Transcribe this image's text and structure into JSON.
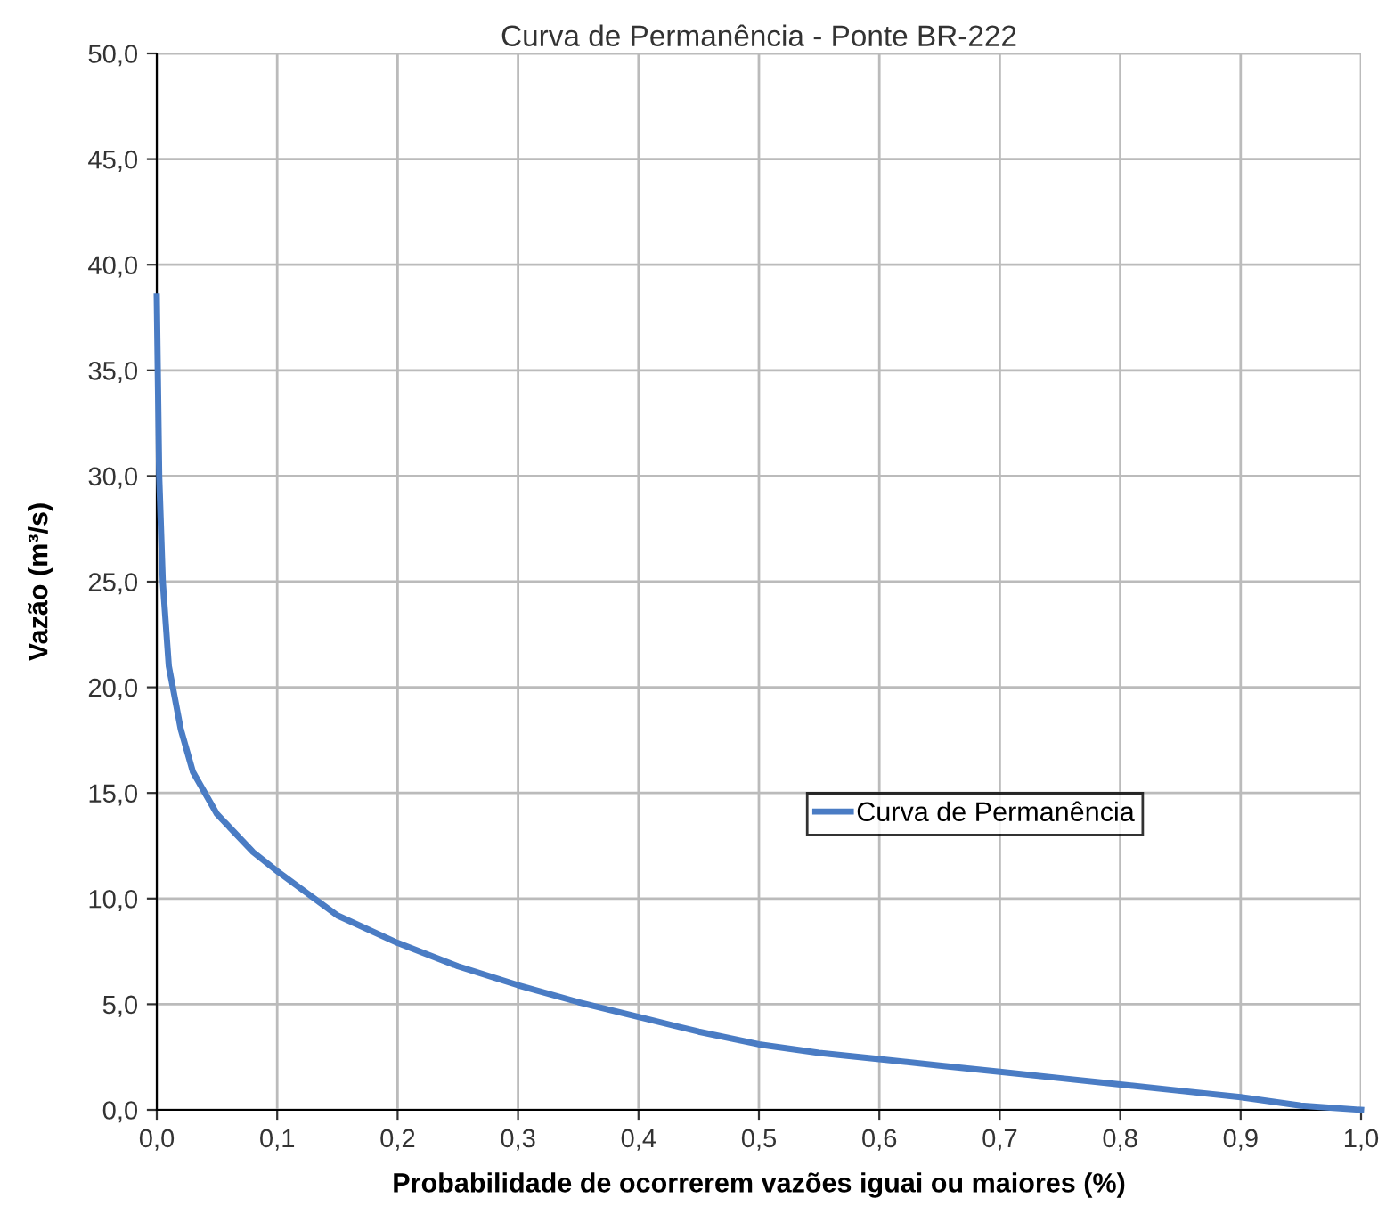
{
  "chart_data": {
    "type": "line",
    "title": "Curva de Permanência - Ponte BR-222",
    "xlabel": "Probabilidade de ocorrerem vazões iguai ou maiores (%)",
    "ylabel": "Vazão (m³/s)",
    "series": [
      {
        "name": "Curva de Permanência",
        "color": "#4a7cc4",
        "x": [
          0,
          0.002,
          0.005,
          0.01,
          0.02,
          0.03,
          0.05,
          0.08,
          0.1,
          0.15,
          0.2,
          0.25,
          0.3,
          0.35,
          0.4,
          0.45,
          0.5,
          0.55,
          0.6,
          0.65,
          0.7,
          0.75,
          0.8,
          0.85,
          0.9,
          0.95,
          1.0
        ],
        "values": [
          38.5,
          30,
          25,
          21,
          18,
          16,
          14,
          12.2,
          11.3,
          9.2,
          7.9,
          6.8,
          5.9,
          5.1,
          4.4,
          3.7,
          3.1,
          2.7,
          2.4,
          2.1,
          1.8,
          1.5,
          1.2,
          0.9,
          0.6,
          0.2,
          0
        ]
      }
    ],
    "xlim": [
      0,
      1
    ],
    "ylim": [
      0,
      50
    ],
    "xticks": [
      {
        "value": 0,
        "label": "0,0"
      },
      {
        "value": 0.1,
        "label": "0,1"
      },
      {
        "value": 0.2,
        "label": "0,2"
      },
      {
        "value": 0.3,
        "label": "0,3"
      },
      {
        "value": 0.4,
        "label": "0,4"
      },
      {
        "value": 0.5,
        "label": "0,5"
      },
      {
        "value": 0.6,
        "label": "0,6"
      },
      {
        "value": 0.7,
        "label": "0,7"
      },
      {
        "value": 0.8,
        "label": "0,8"
      },
      {
        "value": 0.9,
        "label": "0,9"
      },
      {
        "value": 1,
        "label": "1,0"
      }
    ],
    "yticks": [
      {
        "value": 0,
        "label": "0,0"
      },
      {
        "value": 5,
        "label": "5,0"
      },
      {
        "value": 10,
        "label": "10,0"
      },
      {
        "value": 15,
        "label": "15,0"
      },
      {
        "value": 20,
        "label": "20,0"
      },
      {
        "value": 25,
        "label": "25,0"
      },
      {
        "value": 30,
        "label": "30,0"
      },
      {
        "value": 35,
        "label": "35,0"
      },
      {
        "value": 40,
        "label": "40,0"
      },
      {
        "value": 45,
        "label": "45,0"
      },
      {
        "value": 50,
        "label": "50,0"
      }
    ],
    "grid": true,
    "legend": "right",
    "marker": "none",
    "line_style": "solid"
  }
}
